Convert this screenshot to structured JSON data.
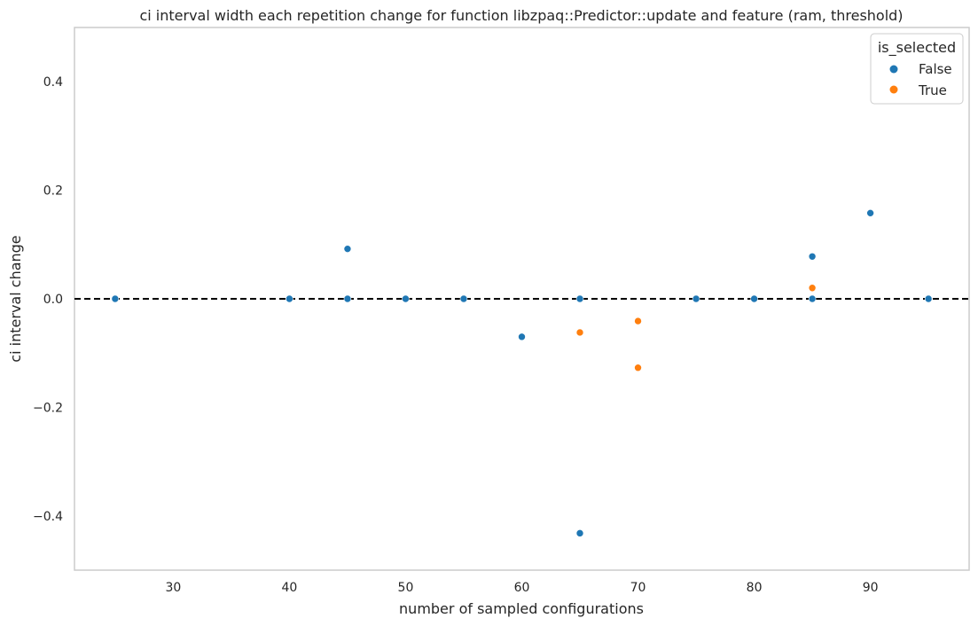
{
  "chart_data": {
    "type": "scatter",
    "title": "ci interval width each repetition change for function libzpaq::Predictor::update and feature (ram, threshold)",
    "xlabel": "number of sampled configurations",
    "ylabel": "ci interval change",
    "xlim": [
      21.5,
      98.5
    ],
    "ylim": [
      -0.5,
      0.5
    ],
    "xticks": [
      30,
      40,
      50,
      60,
      70,
      80,
      90
    ],
    "xtick_labels": [
      "30",
      "40",
      "50",
      "60",
      "70",
      "80",
      "90"
    ],
    "yticks": [
      -0.4,
      -0.2,
      0.0,
      0.2,
      0.4
    ],
    "ytick_labels": [
      "−0.4",
      "−0.2",
      "0.0",
      "0.2",
      "0.4"
    ],
    "grid": false,
    "reference_line": {
      "y": 0.0,
      "style": "dashed",
      "color": "#000000"
    },
    "legend": {
      "title": "is_selected",
      "placement": "top-right",
      "entries": [
        {
          "label": "False",
          "color": "#1f77b4"
        },
        {
          "label": "True",
          "color": "#ff7f0e"
        }
      ]
    },
    "series": [
      {
        "name": "False",
        "color": "#1f77b4",
        "points": [
          {
            "x": 25,
            "y": 0.0
          },
          {
            "x": 40,
            "y": 0.0
          },
          {
            "x": 45,
            "y": 0.092
          },
          {
            "x": 45,
            "y": 0.0
          },
          {
            "x": 50,
            "y": 0.0
          },
          {
            "x": 55,
            "y": 0.0
          },
          {
            "x": 60,
            "y": -0.07
          },
          {
            "x": 65,
            "y": 0.0
          },
          {
            "x": 65,
            "y": -0.432
          },
          {
            "x": 75,
            "y": 0.0
          },
          {
            "x": 80,
            "y": 0.0
          },
          {
            "x": 85,
            "y": 0.078
          },
          {
            "x": 85,
            "y": 0.0
          },
          {
            "x": 90,
            "y": 0.158
          },
          {
            "x": 95,
            "y": 0.0
          }
        ]
      },
      {
        "name": "True",
        "color": "#ff7f0e",
        "points": [
          {
            "x": 65,
            "y": -0.062
          },
          {
            "x": 70,
            "y": -0.041
          },
          {
            "x": 70,
            "y": -0.127
          },
          {
            "x": 85,
            "y": 0.02
          }
        ]
      }
    ]
  }
}
